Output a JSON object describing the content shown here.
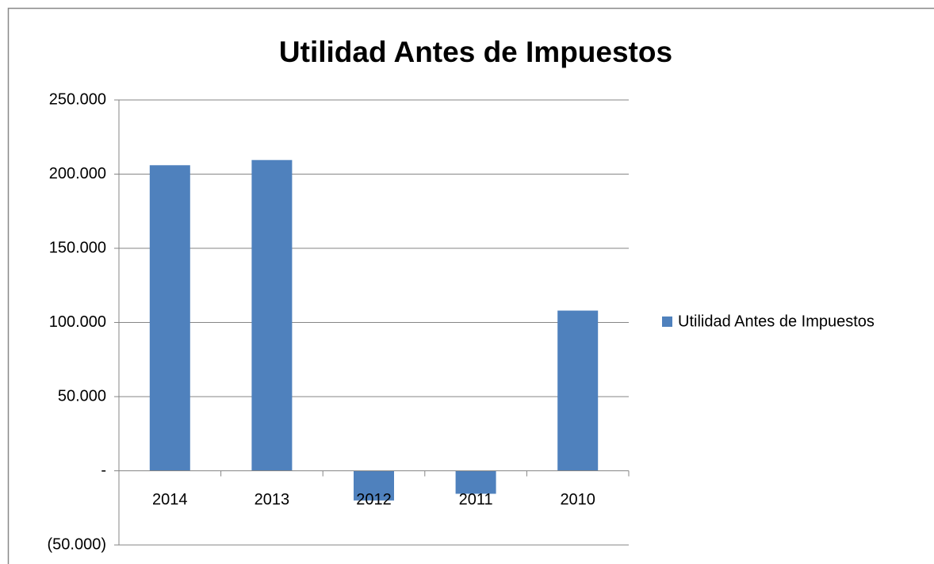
{
  "chart_data": {
    "type": "bar",
    "title": "Utilidad Antes de Impuestos",
    "categories": [
      "2014",
      "2013",
      "2012",
      "2011",
      "2010"
    ],
    "series": [
      {
        "name": "Utilidad Antes de Impuestos",
        "color": "#4f81bd",
        "values": [
          206000,
          209500,
          -20000,
          -15500,
          108000
        ]
      }
    ],
    "ylim": [
      -50000,
      250000
    ],
    "yticks": [
      {
        "value": -50000,
        "label": "(50.000)"
      },
      {
        "value": 0,
        "label": "-"
      },
      {
        "value": 50000,
        "label": "50.000"
      },
      {
        "value": 100000,
        "label": "100.000"
      },
      {
        "value": 150000,
        "label": "150.000"
      },
      {
        "value": 200000,
        "label": "200.000"
      },
      {
        "value": 250000,
        "label": "250.000"
      }
    ],
    "grid": true,
    "legend": "right"
  }
}
